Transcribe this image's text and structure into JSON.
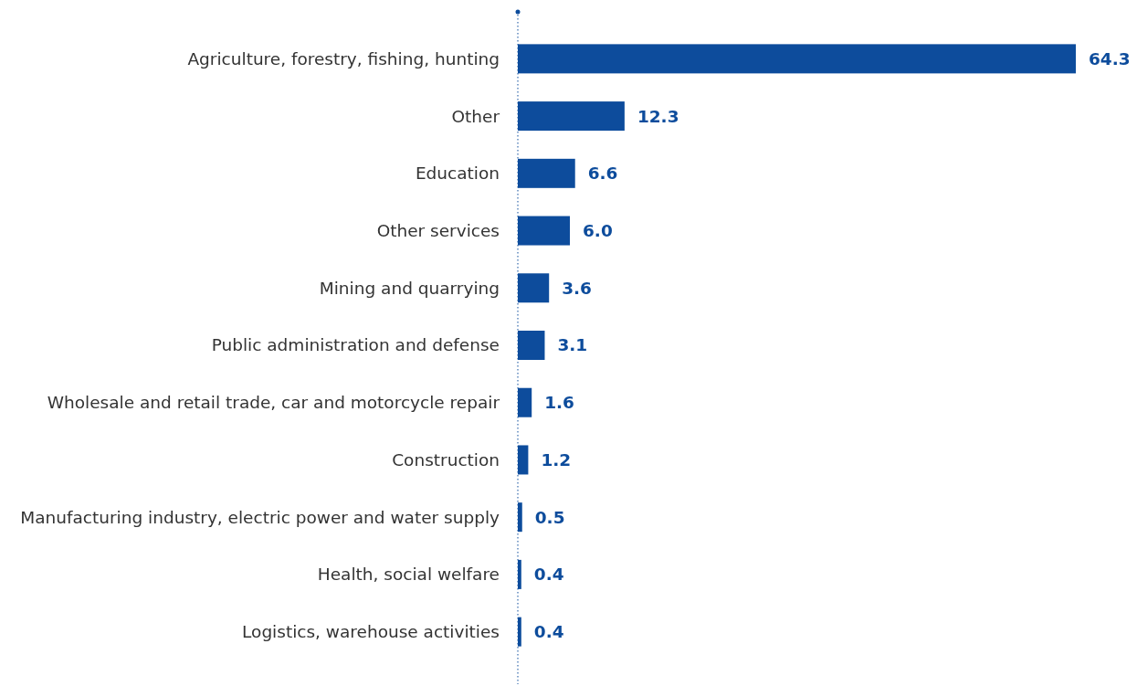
{
  "chart_data": {
    "type": "bar",
    "orientation": "horizontal",
    "categories": [
      "Agriculture, forestry, fishing, hunting",
      "Other",
      "Education",
      "Other services",
      "Mining and quarrying",
      "Public administration and defense",
      "Wholesale and retail trade, car and motorcycle repair",
      "Construction",
      "Manufacturing industry, electric power and water supply",
      "Health, social welfare",
      "Logistics, warehouse activities"
    ],
    "values": [
      64.3,
      12.3,
      6.6,
      6.0,
      3.6,
      3.1,
      1.6,
      1.2,
      0.5,
      0.4,
      0.4
    ],
    "value_labels": [
      "64.3",
      "12.3",
      "6.6",
      "6.0",
      "3.6",
      "3.1",
      "1.6",
      "1.2",
      "0.5",
      "0.4",
      "0.4"
    ],
    "color": "#0d4c9c",
    "tick_labels": "y"
  }
}
